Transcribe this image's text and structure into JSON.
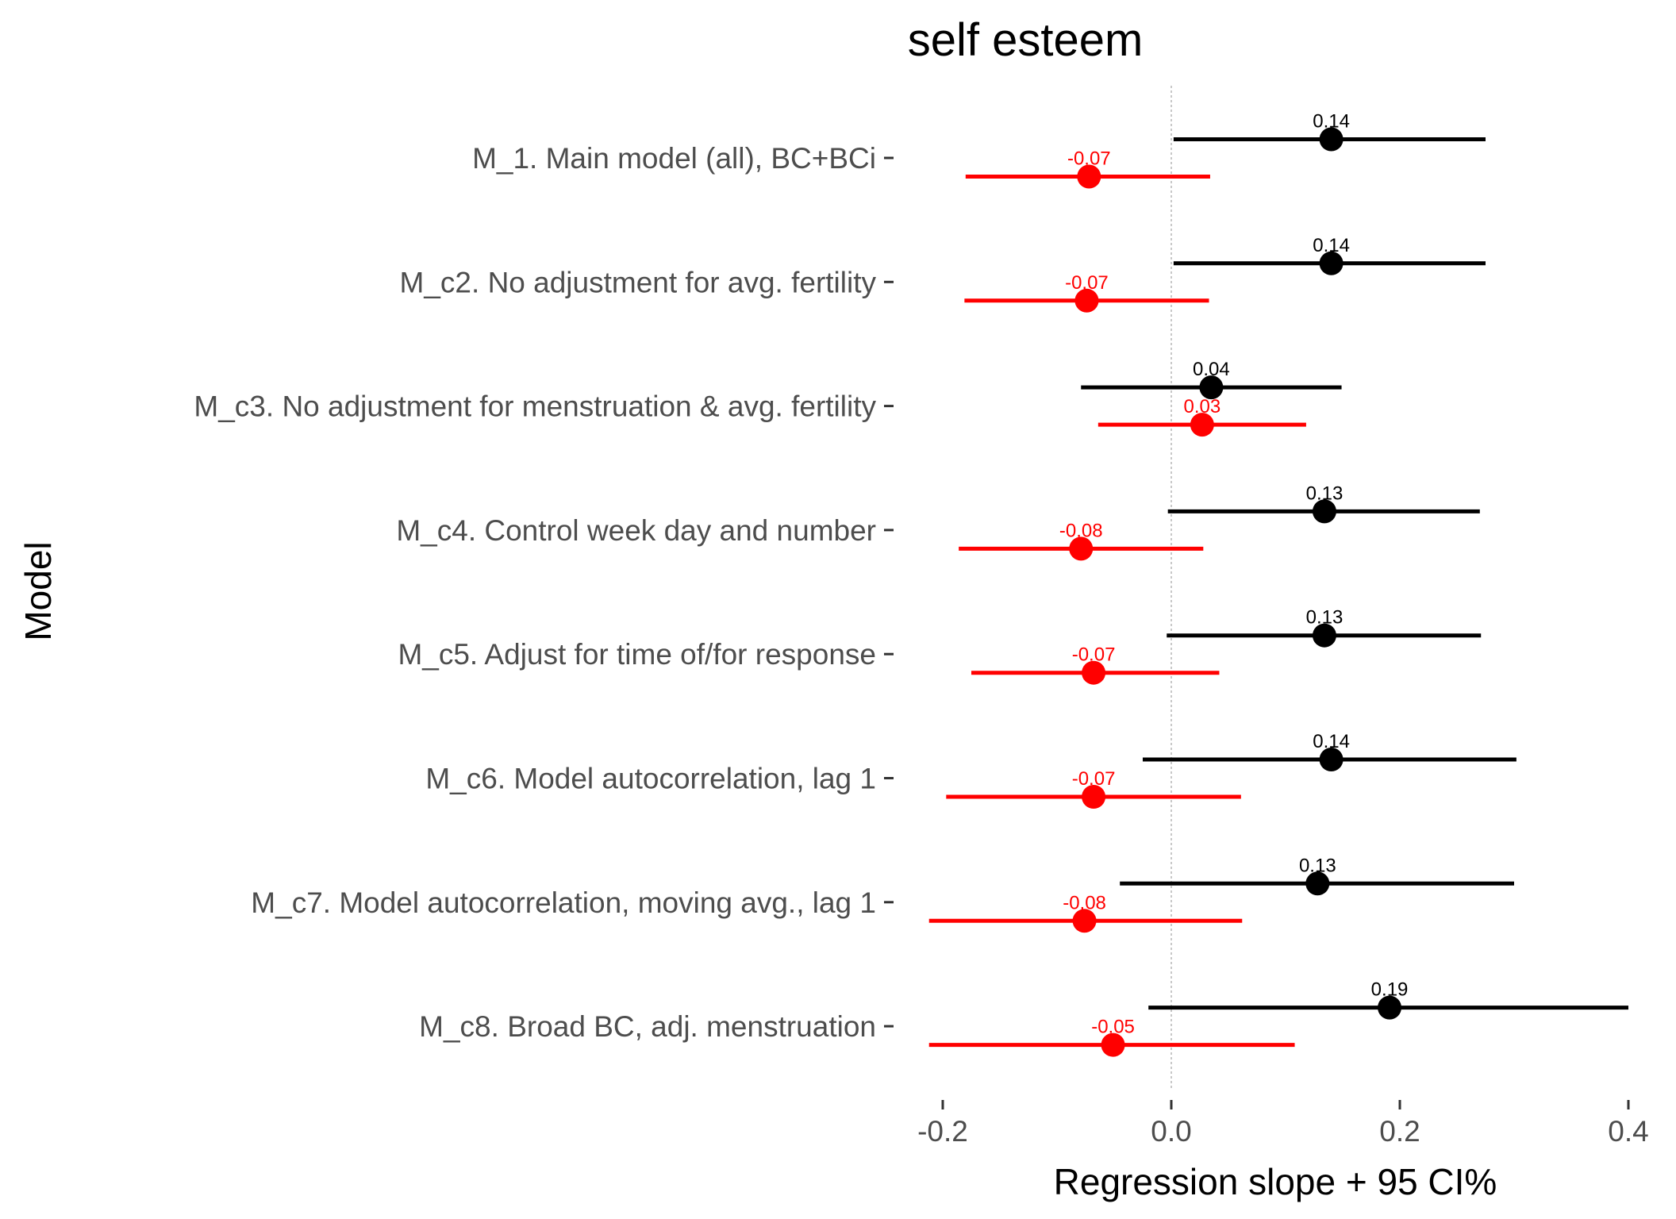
{
  "chart_data": {
    "type": "forest",
    "title": "self esteem",
    "xlabel": "Regression slope + 95 CI%",
    "ylabel": "Model",
    "xlim": [
      -0.235,
      0.415
    ],
    "x_ticks": [
      -0.2,
      0.0,
      0.2,
      0.4
    ],
    "x_tick_labels": [
      "-0.2",
      "0.0",
      "0.2",
      "0.4"
    ],
    "grid": false,
    "zero_reference_line": true,
    "categories": [
      "M_1. Main model (all), BC+BCi",
      "M_c2. No adjustment for avg. fertility",
      "M_c3. No adjustment for menstruation & avg. fertility",
      "M_c4. Control week day and number",
      "M_c5. Adjust for time of/for response",
      "M_c6. Model autocorrelation, lag 1",
      "M_c7. Model autocorrelation, moving avg., lag 1",
      "M_c8. Broad BC, adj. menstruation"
    ],
    "series": [
      {
        "color": "#000000",
        "estimates": [
          0.14,
          0.14,
          0.035,
          0.134,
          0.134,
          0.14,
          0.128,
          0.191
        ],
        "ci_low": [
          0.002,
          0.002,
          -0.079,
          -0.003,
          -0.004,
          -0.025,
          -0.045,
          -0.02
        ],
        "ci_high": [
          0.275,
          0.275,
          0.149,
          0.27,
          0.271,
          0.302,
          0.3,
          0.4
        ],
        "labels": [
          "0.14",
          "0.14",
          "0.04",
          "0.13",
          "0.13",
          "0.14",
          "0.13",
          "0.19"
        ]
      },
      {
        "color": "#ff0000",
        "estimates": [
          -0.072,
          -0.074,
          0.027,
          -0.079,
          -0.068,
          -0.068,
          -0.076,
          -0.051
        ],
        "ci_low": [
          -0.18,
          -0.181,
          -0.064,
          -0.186,
          -0.175,
          -0.197,
          -0.212,
          -0.212
        ],
        "ci_high": [
          0.034,
          0.033,
          0.118,
          0.028,
          0.042,
          0.061,
          0.062,
          0.108
        ],
        "labels": [
          "-0.07",
          "-0.07",
          "0.03",
          "-0.08",
          "-0.07",
          "-0.07",
          "-0.08",
          "-0.05"
        ]
      }
    ]
  }
}
